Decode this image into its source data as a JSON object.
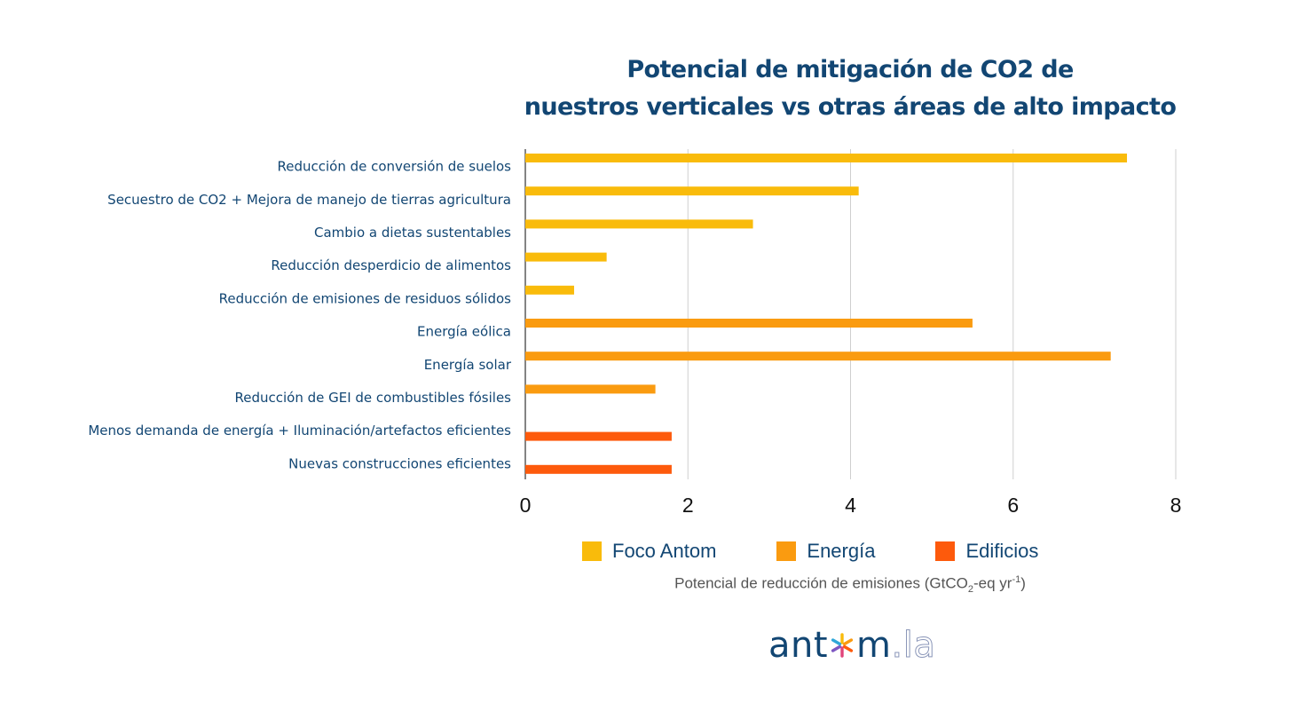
{
  "chart_data": {
    "type": "bar",
    "orientation": "horizontal",
    "title": [
      "Potencial de mitigación de CO2 de",
      "nuestros verticales vs otras áreas de alto impacto"
    ],
    "categories": [
      "Reducción de conversión de suelos",
      "Secuestro de CO2 + Mejora de manejo de tierras agricultura",
      "Cambio a dietas sustentables",
      "Reducción desperdicio de alimentos",
      "Reducción de emisiones de residuos sólidos",
      "Energía eólica",
      "Energía solar",
      "Reducción de GEI de combustibles fósiles",
      "Menos demanda de energía + Iluminación/artefactos eficientes",
      "Nuevas construcciones eficientes"
    ],
    "series": [
      {
        "name": "Foco Antom",
        "color": "#F9BB0B",
        "values": [
          7.4,
          4.1,
          2.8,
          1.0,
          0.6,
          null,
          null,
          null,
          null,
          null
        ]
      },
      {
        "name": "Energía",
        "color": "#FA9B10",
        "values": [
          null,
          null,
          null,
          null,
          null,
          5.5,
          7.2,
          1.6,
          null,
          null
        ]
      },
      {
        "name": "Edificios",
        "color": "#FD5A0C",
        "values": [
          null,
          null,
          null,
          null,
          null,
          null,
          null,
          null,
          1.8,
          1.8
        ]
      }
    ],
    "xlim": [
      0,
      8
    ],
    "xticks": [
      "0",
      "2",
      "4",
      "6",
      "8"
    ],
    "xlabel": {
      "main": "Potencial de reducción de emisiones (GtCO",
      "sub": "2",
      "mid": "-eq yr",
      "sup": "-1",
      "end": ")"
    },
    "grid": true,
    "legend_position": "bottom"
  },
  "logo": {
    "left": "ant",
    "star": "✱",
    "right": "m",
    "suffix": ".la"
  }
}
